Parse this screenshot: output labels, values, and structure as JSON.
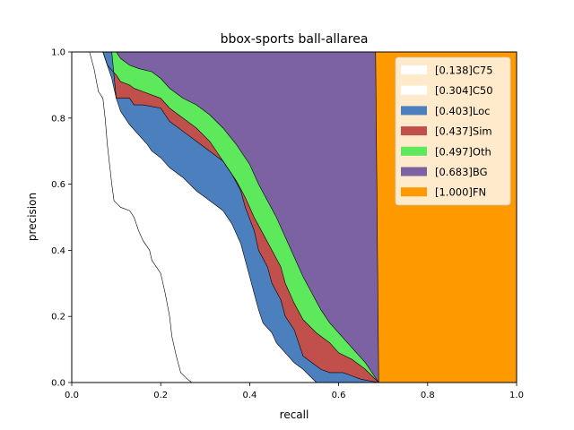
{
  "chart_data": {
    "type": "area",
    "title": "bbox-sports ball-allarea",
    "xlabel": "recall",
    "ylabel": "precision",
    "xlim": [
      0,
      1
    ],
    "ylim": [
      0,
      1
    ],
    "xticks": [
      "0.0",
      "0.2",
      "0.4",
      "0.6",
      "0.8",
      "1.0"
    ],
    "yticks": [
      "0.0",
      "0.2",
      "0.4",
      "0.6",
      "0.8",
      "1.0"
    ],
    "grid": false,
    "legend_position": "top-right",
    "series": [
      {
        "name": "[0.138]C75",
        "color": "#ffffff",
        "points": [
          [
            0.0,
            1.0
          ],
          [
            0.02,
            1.0
          ],
          [
            0.04,
            1.0
          ],
          [
            0.05,
            0.95
          ],
          [
            0.06,
            0.88
          ],
          [
            0.07,
            0.86
          ],
          [
            0.075,
            0.8
          ],
          [
            0.08,
            0.72
          ],
          [
            0.085,
            0.66
          ],
          [
            0.09,
            0.6
          ],
          [
            0.095,
            0.55
          ],
          [
            0.11,
            0.53
          ],
          [
            0.13,
            0.52
          ],
          [
            0.14,
            0.5
          ],
          [
            0.15,
            0.46
          ],
          [
            0.16,
            0.43
          ],
          [
            0.175,
            0.4
          ],
          [
            0.18,
            0.37
          ],
          [
            0.2,
            0.33
          ],
          [
            0.21,
            0.27
          ],
          [
            0.22,
            0.2
          ],
          [
            0.225,
            0.14
          ],
          [
            0.235,
            0.08
          ],
          [
            0.245,
            0.03
          ],
          [
            0.26,
            0.01
          ],
          [
            0.27,
            0.0
          ]
        ]
      },
      {
        "name": "[0.304]C50",
        "color": "#ffffff",
        "points": [
          [
            0.0,
            1.0
          ],
          [
            0.07,
            1.0
          ],
          [
            0.08,
            0.96
          ],
          [
            0.09,
            0.92
          ],
          [
            0.1,
            0.86
          ],
          [
            0.11,
            0.82
          ],
          [
            0.12,
            0.8
          ],
          [
            0.13,
            0.78
          ],
          [
            0.15,
            0.75
          ],
          [
            0.17,
            0.72
          ],
          [
            0.18,
            0.7
          ],
          [
            0.2,
            0.68
          ],
          [
            0.22,
            0.65
          ],
          [
            0.25,
            0.62
          ],
          [
            0.28,
            0.58
          ],
          [
            0.31,
            0.55
          ],
          [
            0.34,
            0.52
          ],
          [
            0.36,
            0.48
          ],
          [
            0.38,
            0.42
          ],
          [
            0.39,
            0.37
          ],
          [
            0.4,
            0.32
          ],
          [
            0.41,
            0.27
          ],
          [
            0.42,
            0.22
          ],
          [
            0.43,
            0.18
          ],
          [
            0.45,
            0.15
          ],
          [
            0.46,
            0.12
          ],
          [
            0.48,
            0.09
          ],
          [
            0.5,
            0.06
          ],
          [
            0.52,
            0.04
          ],
          [
            0.55,
            0.0
          ]
        ]
      },
      {
        "name": "[0.403]Loc",
        "color": "#4c7fbd",
        "points": [
          [
            0.0,
            1.0
          ],
          [
            0.09,
            1.0
          ],
          [
            0.1,
            0.86
          ],
          [
            0.13,
            0.86
          ],
          [
            0.14,
            0.84
          ],
          [
            0.16,
            0.84
          ],
          [
            0.2,
            0.83
          ],
          [
            0.22,
            0.79
          ],
          [
            0.25,
            0.76
          ],
          [
            0.28,
            0.73
          ],
          [
            0.31,
            0.7
          ],
          [
            0.34,
            0.67
          ],
          [
            0.36,
            0.63
          ],
          [
            0.38,
            0.58
          ],
          [
            0.39,
            0.53
          ],
          [
            0.41,
            0.46
          ],
          [
            0.42,
            0.4
          ],
          [
            0.44,
            0.35
          ],
          [
            0.45,
            0.3
          ],
          [
            0.47,
            0.25
          ],
          [
            0.48,
            0.2
          ],
          [
            0.5,
            0.16
          ],
          [
            0.51,
            0.12
          ],
          [
            0.52,
            0.08
          ],
          [
            0.54,
            0.06
          ],
          [
            0.56,
            0.04
          ],
          [
            0.58,
            0.03
          ],
          [
            0.61,
            0.03
          ],
          [
            0.63,
            0.02
          ],
          [
            0.65,
            0.01
          ],
          [
            0.69,
            0.0
          ]
        ]
      },
      {
        "name": "[0.437]Sim",
        "color": "#c1504c",
        "points": [
          [
            0.0,
            1.0
          ],
          [
            0.07,
            1.0
          ],
          [
            0.08,
            0.96
          ],
          [
            0.1,
            0.93
          ],
          [
            0.11,
            0.91
          ],
          [
            0.13,
            0.9
          ],
          [
            0.14,
            0.89
          ],
          [
            0.16,
            0.88
          ],
          [
            0.2,
            0.86
          ],
          [
            0.22,
            0.83
          ],
          [
            0.25,
            0.8
          ],
          [
            0.28,
            0.77
          ],
          [
            0.31,
            0.73
          ],
          [
            0.33,
            0.69
          ],
          [
            0.35,
            0.65
          ],
          [
            0.37,
            0.61
          ],
          [
            0.39,
            0.56
          ],
          [
            0.41,
            0.5
          ],
          [
            0.43,
            0.45
          ],
          [
            0.45,
            0.4
          ],
          [
            0.47,
            0.35
          ],
          [
            0.48,
            0.3
          ],
          [
            0.5,
            0.24
          ],
          [
            0.52,
            0.19
          ],
          [
            0.55,
            0.15
          ],
          [
            0.58,
            0.12
          ],
          [
            0.6,
            0.09
          ],
          [
            0.63,
            0.07
          ],
          [
            0.66,
            0.04
          ],
          [
            0.69,
            0.0
          ]
        ]
      },
      {
        "name": "[0.497]Oth",
        "color": "#5ee85c",
        "points": [
          [
            0.0,
            1.0
          ],
          [
            0.1,
            1.0
          ],
          [
            0.11,
            0.98
          ],
          [
            0.13,
            0.96
          ],
          [
            0.15,
            0.95
          ],
          [
            0.18,
            0.94
          ],
          [
            0.2,
            0.92
          ],
          [
            0.22,
            0.89
          ],
          [
            0.25,
            0.86
          ],
          [
            0.28,
            0.84
          ],
          [
            0.31,
            0.81
          ],
          [
            0.34,
            0.77
          ],
          [
            0.37,
            0.72
          ],
          [
            0.4,
            0.66
          ],
          [
            0.42,
            0.6
          ],
          [
            0.44,
            0.55
          ],
          [
            0.46,
            0.5
          ],
          [
            0.48,
            0.44
          ],
          [
            0.5,
            0.38
          ],
          [
            0.52,
            0.32
          ],
          [
            0.54,
            0.27
          ],
          [
            0.56,
            0.22
          ],
          [
            0.58,
            0.18
          ],
          [
            0.6,
            0.15
          ],
          [
            0.62,
            0.12
          ],
          [
            0.64,
            0.09
          ],
          [
            0.66,
            0.06
          ],
          [
            0.69,
            0.0
          ]
        ]
      },
      {
        "name": "[0.683]BG",
        "color": "#7d62a3",
        "points": [
          [
            0.0,
            1.0
          ],
          [
            0.683,
            1.0
          ],
          [
            0.69,
            0.0
          ]
        ]
      },
      {
        "name": "[1.000]FN",
        "color": "#ff9900",
        "points": [
          [
            0.0,
            1.0
          ],
          [
            1.0,
            1.0
          ],
          [
            1.0,
            0.0
          ]
        ]
      }
    ]
  }
}
